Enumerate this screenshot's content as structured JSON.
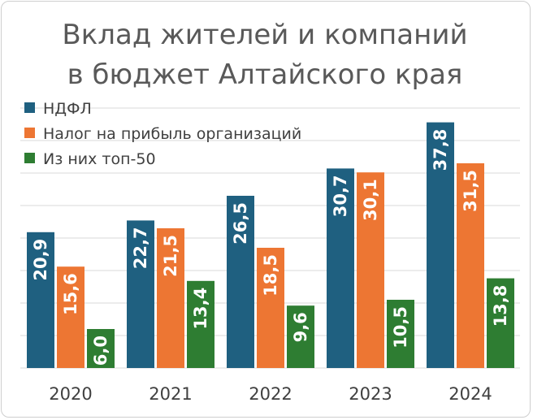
{
  "chart_data": {
    "type": "bar",
    "title_lines": [
      "Вклад жителей и компаний",
      "в бюджет Алтайского края"
    ],
    "categories": [
      "2020",
      "2021",
      "2022",
      "2023",
      "2024"
    ],
    "series": [
      {
        "name": "НДФЛ",
        "color": "#1f6080",
        "values": [
          20.9,
          22.7,
          26.5,
          30.7,
          37.8
        ],
        "labels": [
          "20,9",
          "22,7",
          "26,5",
          "30,7",
          "37,8"
        ]
      },
      {
        "name": "Налог на прибыль организаций",
        "color": "#ed7633",
        "values": [
          15.6,
          21.5,
          18.5,
          30.1,
          31.5
        ],
        "labels": [
          "15,6",
          "21,5",
          "18,5",
          "30,1",
          "31,5"
        ]
      },
      {
        "name": "Из них топ-50",
        "color": "#2e7d32",
        "values": [
          6.0,
          13.4,
          9.6,
          10.5,
          13.8
        ],
        "labels": [
          "6,0",
          "13,4",
          "9,6",
          "10,5",
          "13,8"
        ]
      }
    ],
    "ylim": [
      0,
      40
    ],
    "grid": true,
    "legend_position": "top-left",
    "data_label_orientation": "vertical"
  }
}
